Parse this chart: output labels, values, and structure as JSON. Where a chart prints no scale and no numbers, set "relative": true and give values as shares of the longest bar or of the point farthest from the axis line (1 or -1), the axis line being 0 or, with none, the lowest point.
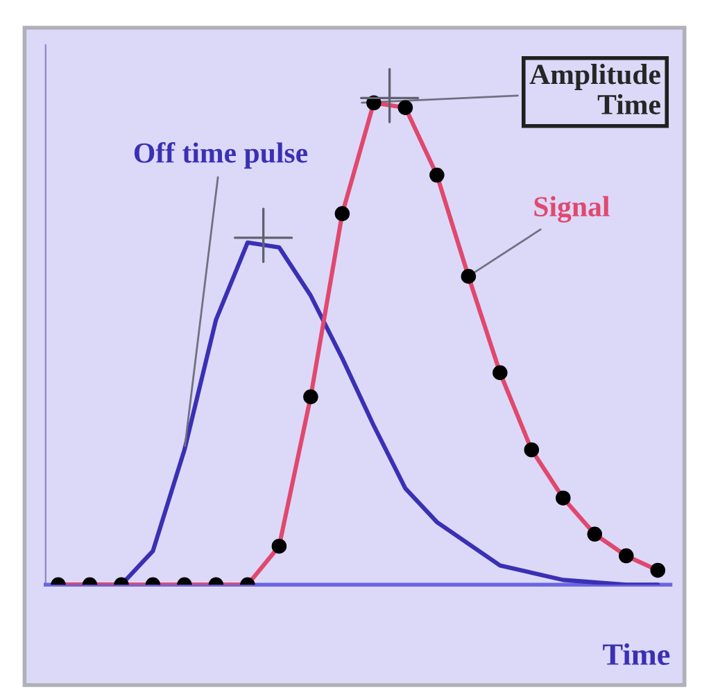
{
  "chart_data": {
    "type": "line",
    "relative": true,
    "xlabel": "Time",
    "categories": [
      null,
      null,
      null,
      null,
      null,
      null,
      null,
      null,
      null,
      null,
      null,
      null,
      null,
      null,
      null,
      null,
      null,
      null,
      null,
      null
    ],
    "series": [
      {
        "name": "Off time pulse",
        "color": "#3a30b4",
        "values": [
          0,
          0,
          0,
          0.07,
          0.28,
          0.55,
          0.71,
          0.7,
          0.6,
          0.47,
          0.33,
          0.2,
          0.13,
          0.085,
          0.04,
          0.025,
          0.01,
          0.005,
          0,
          0
        ]
      },
      {
        "name": "Signal",
        "color": "#e0486e",
        "marker": "circle",
        "values": [
          0,
          0,
          0,
          0,
          0,
          0,
          0,
          0.08,
          0.39,
          0.77,
          1.0,
          0.99,
          0.85,
          0.64,
          0.44,
          0.28,
          0.18,
          0.105,
          0.06,
          0.03
        ]
      }
    ],
    "annotations": [
      "Amplitude\nTime"
    ],
    "grid": false
  }
}
